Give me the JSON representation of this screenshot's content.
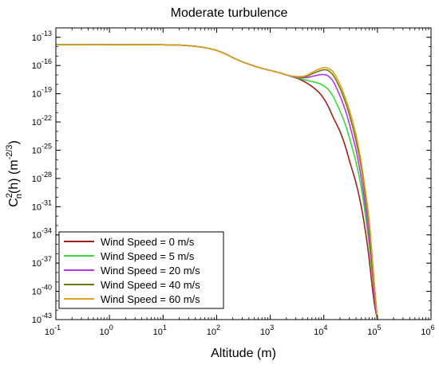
{
  "chart_data": {
    "type": "line",
    "title": "Moderate turbulence",
    "xlabel": "Altitude (m)",
    "ylabel": {
      "base": "C",
      "sup1": "2",
      "sub1": "n",
      "mid": "(h) (m",
      "sup2": "-2/3",
      "end": ")"
    },
    "x_scale": "log",
    "y_scale": "log",
    "xlim": [
      0.1,
      1000000
    ],
    "ylim": [
      1e-43,
      1e-12
    ],
    "x_ticks": [
      {
        "value": 0.1,
        "base": "10",
        "exp": "-1"
      },
      {
        "value": 1,
        "base": "10",
        "exp": "0"
      },
      {
        "value": 10,
        "base": "10",
        "exp": "1"
      },
      {
        "value": 100,
        "base": "10",
        "exp": "2"
      },
      {
        "value": 1000,
        "base": "10",
        "exp": "3"
      },
      {
        "value": 10000,
        "base": "10",
        "exp": "4"
      },
      {
        "value": 100000,
        "base": "10",
        "exp": "5"
      },
      {
        "value": 1000000,
        "base": "10",
        "exp": "6"
      }
    ],
    "y_ticks": [
      {
        "value": 1e-13,
        "base": "10",
        "exp": "-13"
      },
      {
        "value": 1e-16,
        "base": "10",
        "exp": "-16"
      },
      {
        "value": 1e-19,
        "base": "10",
        "exp": "-19"
      },
      {
        "value": 1e-22,
        "base": "10",
        "exp": "-22"
      },
      {
        "value": 1e-25,
        "base": "10",
        "exp": "-25"
      },
      {
        "value": 1e-28,
        "base": "10",
        "exp": "-28"
      },
      {
        "value": 1e-31,
        "base": "10",
        "exp": "-31"
      },
      {
        "value": 1e-34,
        "base": "10",
        "exp": "-34"
      },
      {
        "value": 1e-37,
        "base": "10",
        "exp": "-37"
      },
      {
        "value": 1e-40,
        "base": "10",
        "exp": "-40"
      },
      {
        "value": 1e-43,
        "base": "10",
        "exp": "-43"
      }
    ],
    "grid": false,
    "legend_position": "bottom-left",
    "series": [
      {
        "name": "Wind Speed = 0 m/s",
        "color": "#a02020",
        "x": [
          0.1,
          1,
          10,
          30,
          60,
          100,
          150,
          200,
          300,
          500,
          700,
          1000,
          1500,
          2000,
          3000,
          4000,
          5000,
          6000,
          8000,
          10000,
          12000,
          15000,
          20000,
          25000,
          30000,
          40000,
          50000,
          60000,
          70000,
          80000,
          90000,
          100000
        ],
        "y": [
          1.7e-14,
          1.7e-14,
          1.6e-14,
          1.3e-14,
          8e-15,
          4e-15,
          1.6e-15,
          7e-16,
          2.5e-16,
          9e-17,
          5e-17,
          3e-17,
          1.7e-17,
          1e-17,
          5e-18,
          2.5e-18,
          1.2e-18,
          6e-19,
          1.5e-19,
          3e-20,
          5e-21,
          3e-22,
          1e-23,
          3e-25,
          8e-27,
          3e-29,
          1e-31,
          2e-34,
          3e-37,
          3e-40,
          2e-42,
          1e-43
        ]
      },
      {
        "name": "Wind Speed = 5 m/s",
        "color": "#33dd33",
        "x": [
          0.1,
          1,
          10,
          30,
          60,
          100,
          150,
          200,
          300,
          500,
          700,
          1000,
          1500,
          2000,
          3000,
          4000,
          5000,
          6000,
          8000,
          10000,
          12000,
          15000,
          20000,
          25000,
          30000,
          40000,
          50000,
          60000,
          70000,
          80000,
          90000,
          100000
        ],
        "y": [
          1.7e-14,
          1.7e-14,
          1.6e-14,
          1.3e-14,
          8e-15,
          4e-15,
          1.6e-15,
          7e-16,
          2.5e-16,
          9e-17,
          5e-17,
          3e-17,
          1.7e-17,
          1e-17,
          5.5e-18,
          3.5e-18,
          2.5e-18,
          2e-18,
          1.3e-18,
          7e-19,
          3e-19,
          5e-20,
          1.5e-21,
          6e-23,
          2e-24,
          5e-27,
          1e-29,
          1e-32,
          1e-35,
          1e-38,
          1e-41,
          1e-43
        ]
      },
      {
        "name": "Wind Speed = 20 m/s",
        "color": "#bb33ee",
        "x": [
          0.1,
          1,
          10,
          30,
          60,
          100,
          150,
          200,
          300,
          500,
          700,
          1000,
          1500,
          2000,
          3000,
          4000,
          5000,
          6000,
          8000,
          10000,
          12000,
          15000,
          20000,
          25000,
          30000,
          40000,
          50000,
          60000,
          70000,
          80000,
          90000,
          100000
        ],
        "y": [
          1.7e-14,
          1.7e-14,
          1.6e-14,
          1.3e-14,
          8e-15,
          4e-15,
          1.6e-15,
          7e-16,
          2.5e-16,
          9e-17,
          5e-17,
          3e-17,
          1.7e-17,
          1e-17,
          6e-18,
          5e-18,
          5.5e-18,
          7e-18,
          1e-17,
          1.1e-17,
          8e-18,
          2e-18,
          6e-20,
          2e-21,
          6e-23,
          1e-25,
          1e-28,
          8e-32,
          5e-35,
          3e-38,
          1e-41,
          1e-43
        ]
      },
      {
        "name": "Wind Speed = 40 m/s",
        "color": "#6b7a10",
        "x": [
          0.1,
          1,
          10,
          30,
          60,
          100,
          150,
          200,
          300,
          500,
          700,
          1000,
          1500,
          2000,
          3000,
          4000,
          5000,
          6000,
          8000,
          10000,
          12000,
          15000,
          20000,
          25000,
          30000,
          40000,
          50000,
          60000,
          70000,
          80000,
          90000,
          100000
        ],
        "y": [
          1.7e-14,
          1.7e-14,
          1.6e-14,
          1.3e-14,
          8e-15,
          4e-15,
          1.6e-15,
          7e-16,
          2.5e-16,
          9e-17,
          5e-17,
          3e-17,
          1.7e-17,
          1e-17,
          6.5e-18,
          6e-18,
          8e-18,
          1.3e-17,
          2.5e-17,
          3.5e-17,
          3e-17,
          9e-18,
          4e-19,
          1.5e-20,
          6e-22,
          1e-24,
          1.5e-27,
          1e-30,
          1e-33,
          1e-37,
          1e-40,
          1e-43
        ]
      },
      {
        "name": "Wind Speed = 60 m/s",
        "color": "#e0a020",
        "x": [
          0.1,
          1,
          10,
          30,
          60,
          100,
          150,
          200,
          300,
          500,
          700,
          1000,
          1500,
          2000,
          3000,
          4000,
          5000,
          6000,
          8000,
          10000,
          12000,
          15000,
          20000,
          25000,
          30000,
          40000,
          50000,
          60000,
          70000,
          80000,
          90000,
          100000
        ],
        "y": [
          1.7e-14,
          1.7e-14,
          1.6e-14,
          1.3e-14,
          8e-15,
          4e-15,
          1.6e-15,
          7e-16,
          2.5e-16,
          9e-17,
          5e-17,
          3e-17,
          1.7e-17,
          1e-17,
          7e-18,
          7e-18,
          1e-17,
          1.8e-17,
          4e-17,
          6e-17,
          5e-17,
          2e-17,
          1e-18,
          4e-20,
          2e-21,
          4e-24,
          5e-27,
          4e-30,
          4e-33,
          5e-37,
          1e-40,
          1e-43
        ]
      }
    ]
  }
}
